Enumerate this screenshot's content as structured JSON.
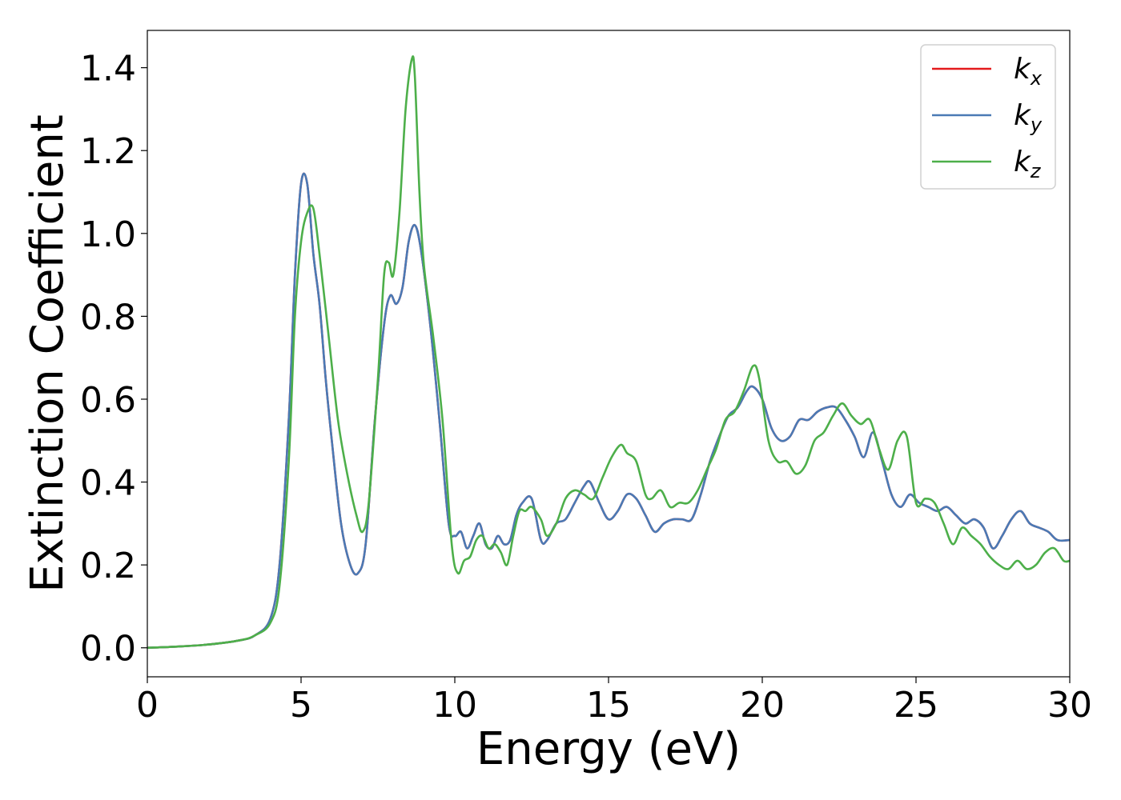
{
  "chart_data": {
    "type": "line",
    "title": "",
    "xlabel": "Energy (eV)",
    "ylabel": "Extinction Coefficient",
    "xlim": [
      0,
      30
    ],
    "ylim": [
      -0.07,
      1.49
    ],
    "xticks": [
      0,
      5,
      10,
      15,
      20,
      25,
      30
    ],
    "xtick_labels": [
      "0",
      "5",
      "10",
      "15",
      "20",
      "25",
      "30"
    ],
    "yticks": [
      0.0,
      0.2,
      0.4,
      0.6,
      0.8,
      1.0,
      1.2,
      1.4
    ],
    "ytick_labels": [
      "0.0",
      "0.2",
      "0.4",
      "0.6",
      "0.8",
      "1.0",
      "1.2",
      "1.4"
    ],
    "grid": false,
    "legend_position": "top-right",
    "series": [
      {
        "name": "k_x",
        "legend_base": "k",
        "legend_sub": "x",
        "color": "#e41a1c",
        "x": [
          0,
          1,
          2,
          3,
          3.5,
          4,
          4.3,
          4.6,
          4.8,
          5.0,
          5.2,
          5.4,
          5.6,
          5.8,
          6.0,
          6.3,
          6.6,
          6.85,
          7.1,
          7.4,
          7.7,
          7.9,
          8.1,
          8.3,
          8.5,
          8.7,
          8.9,
          9.2,
          9.5,
          9.8,
          10.0,
          10.2,
          10.4,
          10.6,
          10.8,
          11.0,
          11.2,
          11.4,
          11.6,
          11.8,
          12.0,
          12.2,
          12.5,
          12.8,
          13.0,
          13.3,
          13.6,
          13.9,
          14.2,
          14.4,
          14.7,
          15.0,
          15.3,
          15.6,
          15.9,
          16.2,
          16.5,
          16.8,
          17.1,
          17.4,
          17.7,
          18.0,
          18.3,
          18.6,
          18.9,
          19.2,
          19.5,
          19.7,
          20.0,
          20.3,
          20.6,
          20.9,
          21.2,
          21.5,
          21.8,
          22.1,
          22.4,
          22.7,
          23.0,
          23.3,
          23.6,
          23.9,
          24.2,
          24.5,
          24.8,
          25.1,
          25.4,
          25.7,
          26.0,
          26.3,
          26.6,
          26.9,
          27.2,
          27.5,
          27.8,
          28.1,
          28.4,
          28.7,
          29.0,
          29.3,
          29.6,
          30.0
        ],
        "values": [
          0.0,
          0.003,
          0.008,
          0.018,
          0.03,
          0.07,
          0.2,
          0.55,
          0.9,
          1.12,
          1.12,
          0.95,
          0.83,
          0.65,
          0.5,
          0.3,
          0.2,
          0.18,
          0.25,
          0.55,
          0.78,
          0.85,
          0.83,
          0.87,
          0.98,
          1.02,
          0.96,
          0.78,
          0.55,
          0.3,
          0.27,
          0.28,
          0.24,
          0.27,
          0.3,
          0.25,
          0.24,
          0.27,
          0.25,
          0.26,
          0.32,
          0.35,
          0.36,
          0.26,
          0.26,
          0.3,
          0.31,
          0.35,
          0.39,
          0.4,
          0.35,
          0.31,
          0.33,
          0.37,
          0.36,
          0.32,
          0.28,
          0.3,
          0.31,
          0.31,
          0.31,
          0.37,
          0.45,
          0.51,
          0.56,
          0.58,
          0.62,
          0.63,
          0.6,
          0.53,
          0.5,
          0.51,
          0.55,
          0.55,
          0.57,
          0.58,
          0.58,
          0.55,
          0.51,
          0.46,
          0.52,
          0.45,
          0.37,
          0.34,
          0.37,
          0.35,
          0.34,
          0.33,
          0.34,
          0.32,
          0.3,
          0.31,
          0.29,
          0.24,
          0.27,
          0.31,
          0.33,
          0.3,
          0.29,
          0.28,
          0.26,
          0.26
        ]
      },
      {
        "name": "k_y",
        "legend_base": "k",
        "legend_sub": "y",
        "color": "#4a7ab5",
        "x": [
          0,
          1,
          2,
          3,
          3.5,
          4,
          4.3,
          4.6,
          4.8,
          5.0,
          5.2,
          5.4,
          5.6,
          5.8,
          6.0,
          6.3,
          6.6,
          6.85,
          7.1,
          7.4,
          7.7,
          7.9,
          8.1,
          8.3,
          8.5,
          8.7,
          8.9,
          9.2,
          9.5,
          9.8,
          10.0,
          10.2,
          10.4,
          10.6,
          10.8,
          11.0,
          11.2,
          11.4,
          11.6,
          11.8,
          12.0,
          12.2,
          12.5,
          12.8,
          13.0,
          13.3,
          13.6,
          13.9,
          14.2,
          14.4,
          14.7,
          15.0,
          15.3,
          15.6,
          15.9,
          16.2,
          16.5,
          16.8,
          17.1,
          17.4,
          17.7,
          18.0,
          18.3,
          18.6,
          18.9,
          19.2,
          19.5,
          19.7,
          20.0,
          20.3,
          20.6,
          20.9,
          21.2,
          21.5,
          21.8,
          22.1,
          22.4,
          22.7,
          23.0,
          23.3,
          23.6,
          23.9,
          24.2,
          24.5,
          24.8,
          25.1,
          25.4,
          25.7,
          26.0,
          26.3,
          26.6,
          26.9,
          27.2,
          27.5,
          27.8,
          28.1,
          28.4,
          28.7,
          29.0,
          29.3,
          29.6,
          30.0
        ],
        "values": [
          0.0,
          0.003,
          0.008,
          0.018,
          0.03,
          0.07,
          0.2,
          0.55,
          0.9,
          1.12,
          1.12,
          0.95,
          0.83,
          0.65,
          0.5,
          0.3,
          0.2,
          0.18,
          0.25,
          0.55,
          0.78,
          0.85,
          0.83,
          0.87,
          0.98,
          1.02,
          0.96,
          0.78,
          0.55,
          0.3,
          0.27,
          0.28,
          0.24,
          0.27,
          0.3,
          0.25,
          0.24,
          0.27,
          0.25,
          0.26,
          0.32,
          0.35,
          0.36,
          0.26,
          0.26,
          0.3,
          0.31,
          0.35,
          0.39,
          0.4,
          0.35,
          0.31,
          0.33,
          0.37,
          0.36,
          0.32,
          0.28,
          0.3,
          0.31,
          0.31,
          0.31,
          0.37,
          0.45,
          0.51,
          0.56,
          0.58,
          0.62,
          0.63,
          0.6,
          0.53,
          0.5,
          0.51,
          0.55,
          0.55,
          0.57,
          0.58,
          0.58,
          0.55,
          0.51,
          0.46,
          0.52,
          0.45,
          0.37,
          0.34,
          0.37,
          0.35,
          0.34,
          0.33,
          0.34,
          0.32,
          0.3,
          0.31,
          0.29,
          0.24,
          0.27,
          0.31,
          0.33,
          0.3,
          0.29,
          0.28,
          0.26,
          0.26
        ]
      },
      {
        "name": "k_z",
        "legend_base": "k",
        "legend_sub": "z",
        "color": "#4daf4a",
        "x": [
          0,
          1,
          2,
          3,
          3.5,
          4,
          4.3,
          4.6,
          4.8,
          5.0,
          5.2,
          5.4,
          5.6,
          5.9,
          6.2,
          6.5,
          6.8,
          7.0,
          7.2,
          7.5,
          7.7,
          7.85,
          8.0,
          8.2,
          8.4,
          8.6,
          8.7,
          8.85,
          9.0,
          9.3,
          9.6,
          9.9,
          10.1,
          10.3,
          10.5,
          10.7,
          10.9,
          11.1,
          11.3,
          11.5,
          11.7,
          11.9,
          12.1,
          12.3,
          12.5,
          12.8,
          13.0,
          13.3,
          13.6,
          13.9,
          14.2,
          14.5,
          14.8,
          15.1,
          15.4,
          15.6,
          15.9,
          16.2,
          16.4,
          16.7,
          17.0,
          17.3,
          17.6,
          17.9,
          18.2,
          18.5,
          18.8,
          19.1,
          19.4,
          19.7,
          19.9,
          20.2,
          20.5,
          20.8,
          21.1,
          21.4,
          21.7,
          22.0,
          22.3,
          22.6,
          22.9,
          23.2,
          23.5,
          23.8,
          24.1,
          24.4,
          24.7,
          25.0,
          25.3,
          25.6,
          25.9,
          26.2,
          26.5,
          26.8,
          27.1,
          27.4,
          27.7,
          28.0,
          28.3,
          28.6,
          28.9,
          29.2,
          29.5,
          29.8,
          30.0
        ],
        "values": [
          0.0,
          0.003,
          0.008,
          0.018,
          0.03,
          0.06,
          0.15,
          0.45,
          0.8,
          0.98,
          1.05,
          1.06,
          0.95,
          0.75,
          0.55,
          0.42,
          0.32,
          0.28,
          0.35,
          0.65,
          0.9,
          0.93,
          0.9,
          1.05,
          1.3,
          1.42,
          1.38,
          1.1,
          0.92,
          0.75,
          0.55,
          0.25,
          0.18,
          0.21,
          0.22,
          0.26,
          0.27,
          0.24,
          0.25,
          0.23,
          0.2,
          0.27,
          0.33,
          0.33,
          0.34,
          0.31,
          0.27,
          0.3,
          0.36,
          0.38,
          0.37,
          0.36,
          0.41,
          0.46,
          0.49,
          0.47,
          0.45,
          0.37,
          0.36,
          0.38,
          0.34,
          0.35,
          0.35,
          0.38,
          0.43,
          0.48,
          0.55,
          0.57,
          0.62,
          0.68,
          0.65,
          0.5,
          0.45,
          0.45,
          0.42,
          0.44,
          0.5,
          0.52,
          0.56,
          0.59,
          0.56,
          0.54,
          0.55,
          0.48,
          0.43,
          0.5,
          0.51,
          0.35,
          0.36,
          0.35,
          0.3,
          0.25,
          0.29,
          0.27,
          0.25,
          0.22,
          0.2,
          0.19,
          0.21,
          0.19,
          0.2,
          0.23,
          0.24,
          0.21,
          0.21
        ]
      }
    ]
  }
}
